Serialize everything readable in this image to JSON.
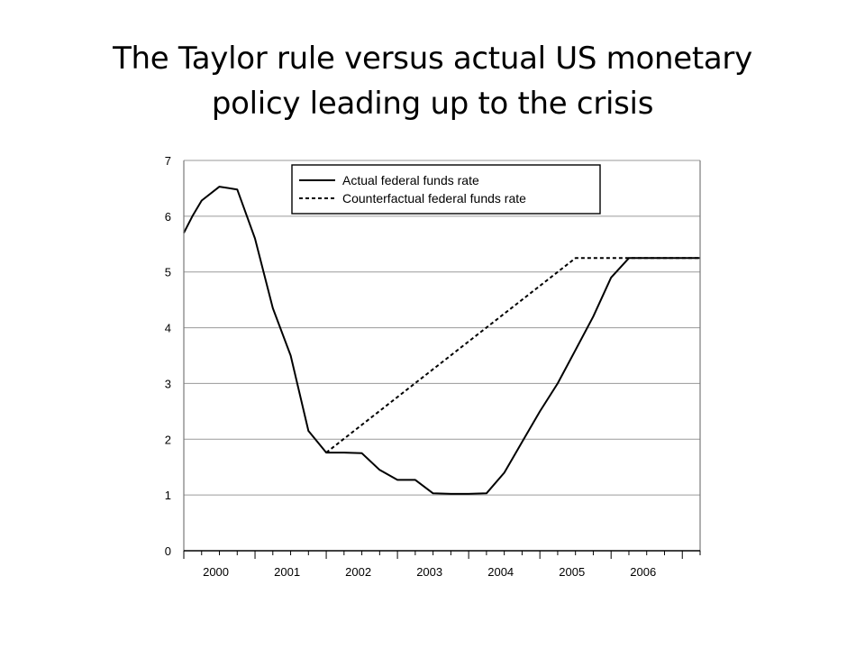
{
  "slide": {
    "title_line1": "The Taylor rule versus actual US monetary",
    "title_line2": "policy leading up to the crisis"
  },
  "chart_data": {
    "type": "line",
    "title": "",
    "xlabel": "",
    "ylabel": "",
    "xlim": [
      2000,
      2007.25
    ],
    "ylim": [
      0,
      7
    ],
    "yticks": [
      0,
      1,
      2,
      3,
      4,
      5,
      6,
      7
    ],
    "xtick_labels": [
      {
        "label": "2000",
        "x": 2000
      },
      {
        "label": "2001",
        "x": 2001
      },
      {
        "label": "2002",
        "x": 2002
      },
      {
        "label": "2003",
        "x": 2003
      },
      {
        "label": "2004",
        "x": 2004
      },
      {
        "label": "2005",
        "x": 2005
      },
      {
        "label": "2006",
        "x": 2006
      }
    ],
    "grid": "horizontal",
    "legend_position": "top-center",
    "series": [
      {
        "name": "Actual federal funds rate",
        "style": "solid",
        "color": "#000000",
        "x": [
          2000,
          2000.12,
          2000.25,
          2000.5,
          2000.75,
          2001,
          2001.25,
          2001.5,
          2001.75,
          2002,
          2002.25,
          2002.5,
          2002.75,
          2003,
          2003.25,
          2003.5,
          2003.75,
          2004,
          2004.25,
          2004.5,
          2004.75,
          2005,
          2005.25,
          2005.5,
          2005.75,
          2006,
          2006.25,
          2006.5,
          2006.75,
          2007,
          2007.25
        ],
        "y": [
          5.7,
          6.0,
          6.28,
          6.53,
          6.48,
          5.6,
          4.35,
          3.5,
          2.15,
          1.76,
          1.76,
          1.75,
          1.45,
          1.27,
          1.27,
          1.03,
          1.02,
          1.02,
          1.03,
          1.4,
          1.95,
          2.5,
          3.0,
          3.6,
          4.2,
          4.9,
          5.25,
          5.25,
          5.25,
          5.25,
          5.25
        ]
      },
      {
        "name": "Counterfactual federal funds rate",
        "style": "dashed",
        "color": "#000000",
        "x": [
          2002,
          2005.5,
          2007.25
        ],
        "y": [
          1.76,
          5.25,
          5.25
        ]
      }
    ]
  }
}
